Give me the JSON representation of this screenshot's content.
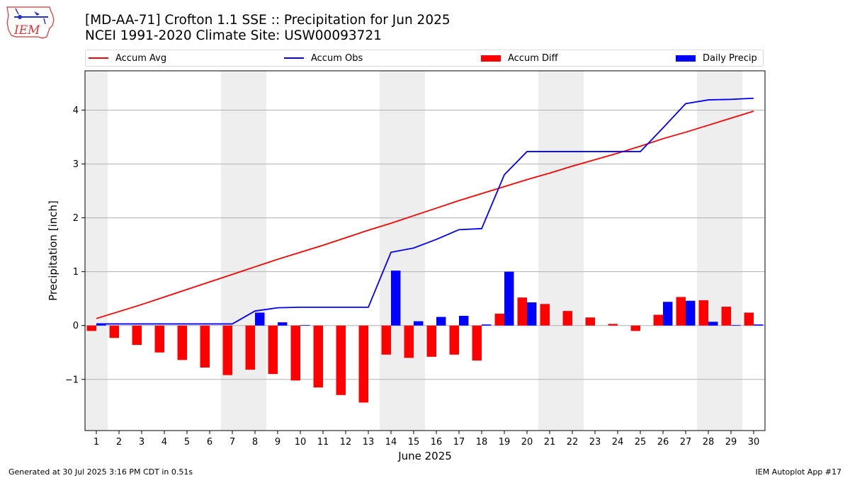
{
  "header": {
    "title_line1": "[MD-AA-71] Crofton 1.1 SSE :: Precipitation for Jun 2025",
    "title_line2": "NCEI 1991-2020 Climate Site: USW00093721",
    "logo_text": "IEM"
  },
  "footer": {
    "generated": "Generated at 30 Jul 2025 3:16 PM CDT in 0.51s",
    "app": "IEM Autoplot App #17"
  },
  "colors": {
    "accum_avg": "#ff0000",
    "accum_obs": "#0000ff",
    "accum_diff": "#ff0000",
    "daily_precip": "#0000ff",
    "weekend_shade": "#eeeeee",
    "grid": "#b0b0b0"
  },
  "chart_data": {
    "type": "bar",
    "title": "[MD-AA-71] Crofton 1.1 SSE :: Precipitation for Jun 2025",
    "subtitle": "NCEI 1991-2020 Climate Site: USW00093721",
    "xlabel": "June 2025",
    "ylabel": "Precipitation [inch]",
    "ylim": [
      -1.95,
      4.73
    ],
    "yticks": [
      -1,
      0,
      1,
      2,
      3,
      4
    ],
    "ytick_labels": [
      "−1",
      "0",
      "1",
      "2",
      "3",
      "4"
    ],
    "grid": true,
    "legend_placement": "top",
    "x": [
      1,
      2,
      3,
      4,
      5,
      6,
      7,
      8,
      9,
      10,
      11,
      12,
      13,
      14,
      15,
      16,
      17,
      18,
      19,
      20,
      21,
      22,
      23,
      24,
      25,
      26,
      27,
      28,
      29,
      30
    ],
    "shaded_days": [
      [
        1,
        1
      ],
      [
        7,
        8
      ],
      [
        14,
        15
      ],
      [
        21,
        22
      ],
      [
        28,
        29
      ]
    ],
    "series": [
      {
        "name": "Accum Avg",
        "kind": "line",
        "values": [
          0.13,
          0.26,
          0.39,
          0.53,
          0.67,
          0.81,
          0.95,
          1.09,
          1.23,
          1.36,
          1.49,
          1.63,
          1.77,
          1.9,
          2.04,
          2.18,
          2.32,
          2.45,
          2.58,
          2.71,
          2.83,
          2.96,
          3.08,
          3.2,
          3.33,
          3.47,
          3.59,
          3.72,
          3.85,
          3.98
        ]
      },
      {
        "name": "Accum Obs",
        "kind": "line",
        "values": [
          0.03,
          0.03,
          0.03,
          0.03,
          0.03,
          0.03,
          0.03,
          0.27,
          0.33,
          0.34,
          0.34,
          0.34,
          0.34,
          1.36,
          1.44,
          1.6,
          1.78,
          1.8,
          2.8,
          3.23,
          3.23,
          3.23,
          3.23,
          3.23,
          3.23,
          3.67,
          4.12,
          4.19,
          4.2,
          4.22
        ]
      },
      {
        "name": "Accum Diff",
        "kind": "bar",
        "values": [
          -0.1,
          -0.23,
          -0.36,
          -0.5,
          -0.64,
          -0.78,
          -0.92,
          -0.82,
          -0.9,
          -1.02,
          -1.15,
          -1.29,
          -1.43,
          -0.54,
          -0.6,
          -0.58,
          -0.54,
          -0.65,
          0.22,
          0.52,
          0.4,
          0.27,
          0.15,
          0.03,
          -0.1,
          0.2,
          0.53,
          0.47,
          0.35,
          0.24
        ]
      },
      {
        "name": "Daily Precip",
        "kind": "bar",
        "values": [
          0.03,
          0.0,
          0.0,
          0.0,
          0.0,
          0.0,
          0.0,
          0.24,
          0.06,
          0.01,
          0.0,
          0.0,
          0.0,
          1.02,
          0.08,
          0.16,
          0.18,
          0.02,
          1.0,
          0.43,
          0.0,
          0.0,
          0.0,
          0.0,
          0.0,
          0.44,
          0.46,
          0.07,
          0.01,
          0.02
        ]
      }
    ]
  }
}
